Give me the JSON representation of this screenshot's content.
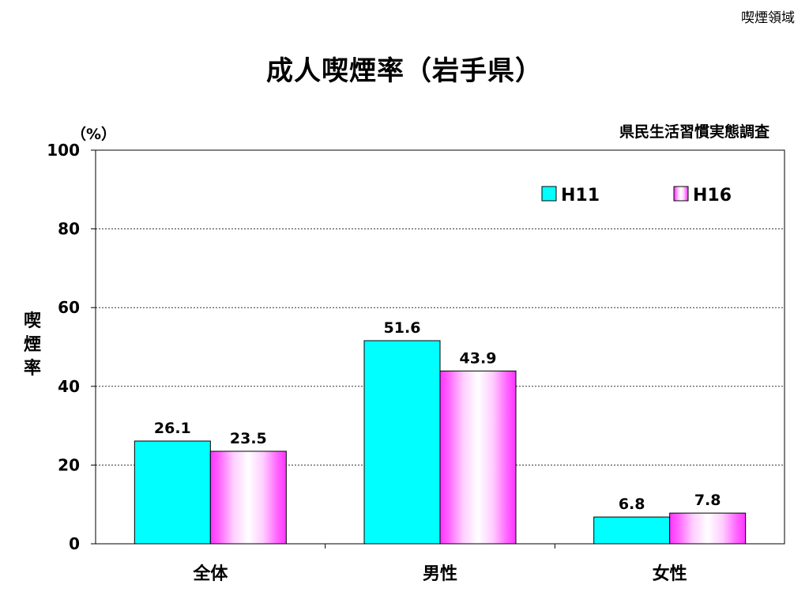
{
  "corner_label": "喫煙領域",
  "chart_data": {
    "type": "bar",
    "title": "成人喫煙率（岩手県）",
    "unit_label": "（%）",
    "source": "県民生活習慣実態調査",
    "ylabel": "喫煙率",
    "ylim": [
      0,
      100
    ],
    "yticks": [
      "0",
      "20",
      "40",
      "60",
      "80",
      "100"
    ],
    "grid": true,
    "legend_position": "top-right",
    "categories": [
      "全体",
      "男性",
      "女性"
    ],
    "series": [
      {
        "name": "H11",
        "values": [
          26.1,
          51.6,
          6.8
        ],
        "value_labels": [
          "26.1",
          "51.6",
          "6.8"
        ],
        "color": "#00ffff"
      },
      {
        "name": "H16",
        "values": [
          23.5,
          43.9,
          7.8
        ],
        "value_labels": [
          "23.5",
          "43.9",
          "7.8"
        ],
        "color": "#ff33ff"
      }
    ]
  }
}
